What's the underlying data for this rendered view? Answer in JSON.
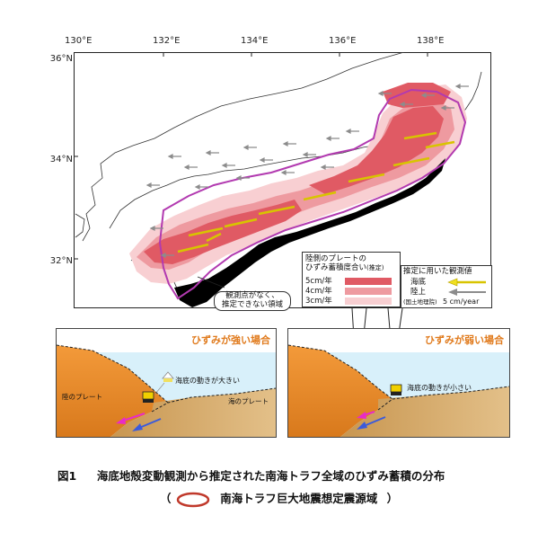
{
  "map": {
    "lon_labels": [
      "130°E",
      "132°E",
      "134°E",
      "136°E",
      "138°E"
    ],
    "lat_labels": [
      "36°N",
      "34°N",
      "32°N"
    ]
  },
  "legend_strain": {
    "title_line1": "陸側のプレートの",
    "title_line2": "ひずみ蓄積度合い",
    "title_suffix": "(推定)",
    "levels": [
      {
        "label": "5cm/年",
        "color": "#e05a64"
      },
      {
        "label": "4cm/年",
        "color": "#ee9aa0"
      },
      {
        "label": "3cm/年",
        "color": "#f8cfd2"
      }
    ]
  },
  "legend_obs": {
    "title": "推定に用いた観測値",
    "seafloor": "海底",
    "land": "陸上",
    "land_note": "(国土地理院)",
    "scale": "5 cm/year",
    "seafloor_color": "#f0e020",
    "land_color": "#8c8c8c"
  },
  "annotation": {
    "line1": "観測点がなく、",
    "line2": "推定できない領域"
  },
  "diagram_strong": {
    "title": "ひずみが強い場合",
    "movement": "海底の動きが大きい",
    "land_plate": "陸のプレート",
    "sea_plate": "海のプレート"
  },
  "diagram_weak": {
    "title": "ひずみが弱い場合",
    "movement": "海底の動きが小さい"
  },
  "caption": {
    "fig": "図1",
    "text": "海底地殻変動観測から推定された南海トラフ全域のひずみ蓄積の分布",
    "open_paren": "（",
    "legend_text": "南海トラフ巨大地震想定震源域",
    "close_paren": "）"
  },
  "colors": {
    "source_region": "#b23ab0",
    "trough": "#000000",
    "caption_ellipse": "#c0392b"
  }
}
